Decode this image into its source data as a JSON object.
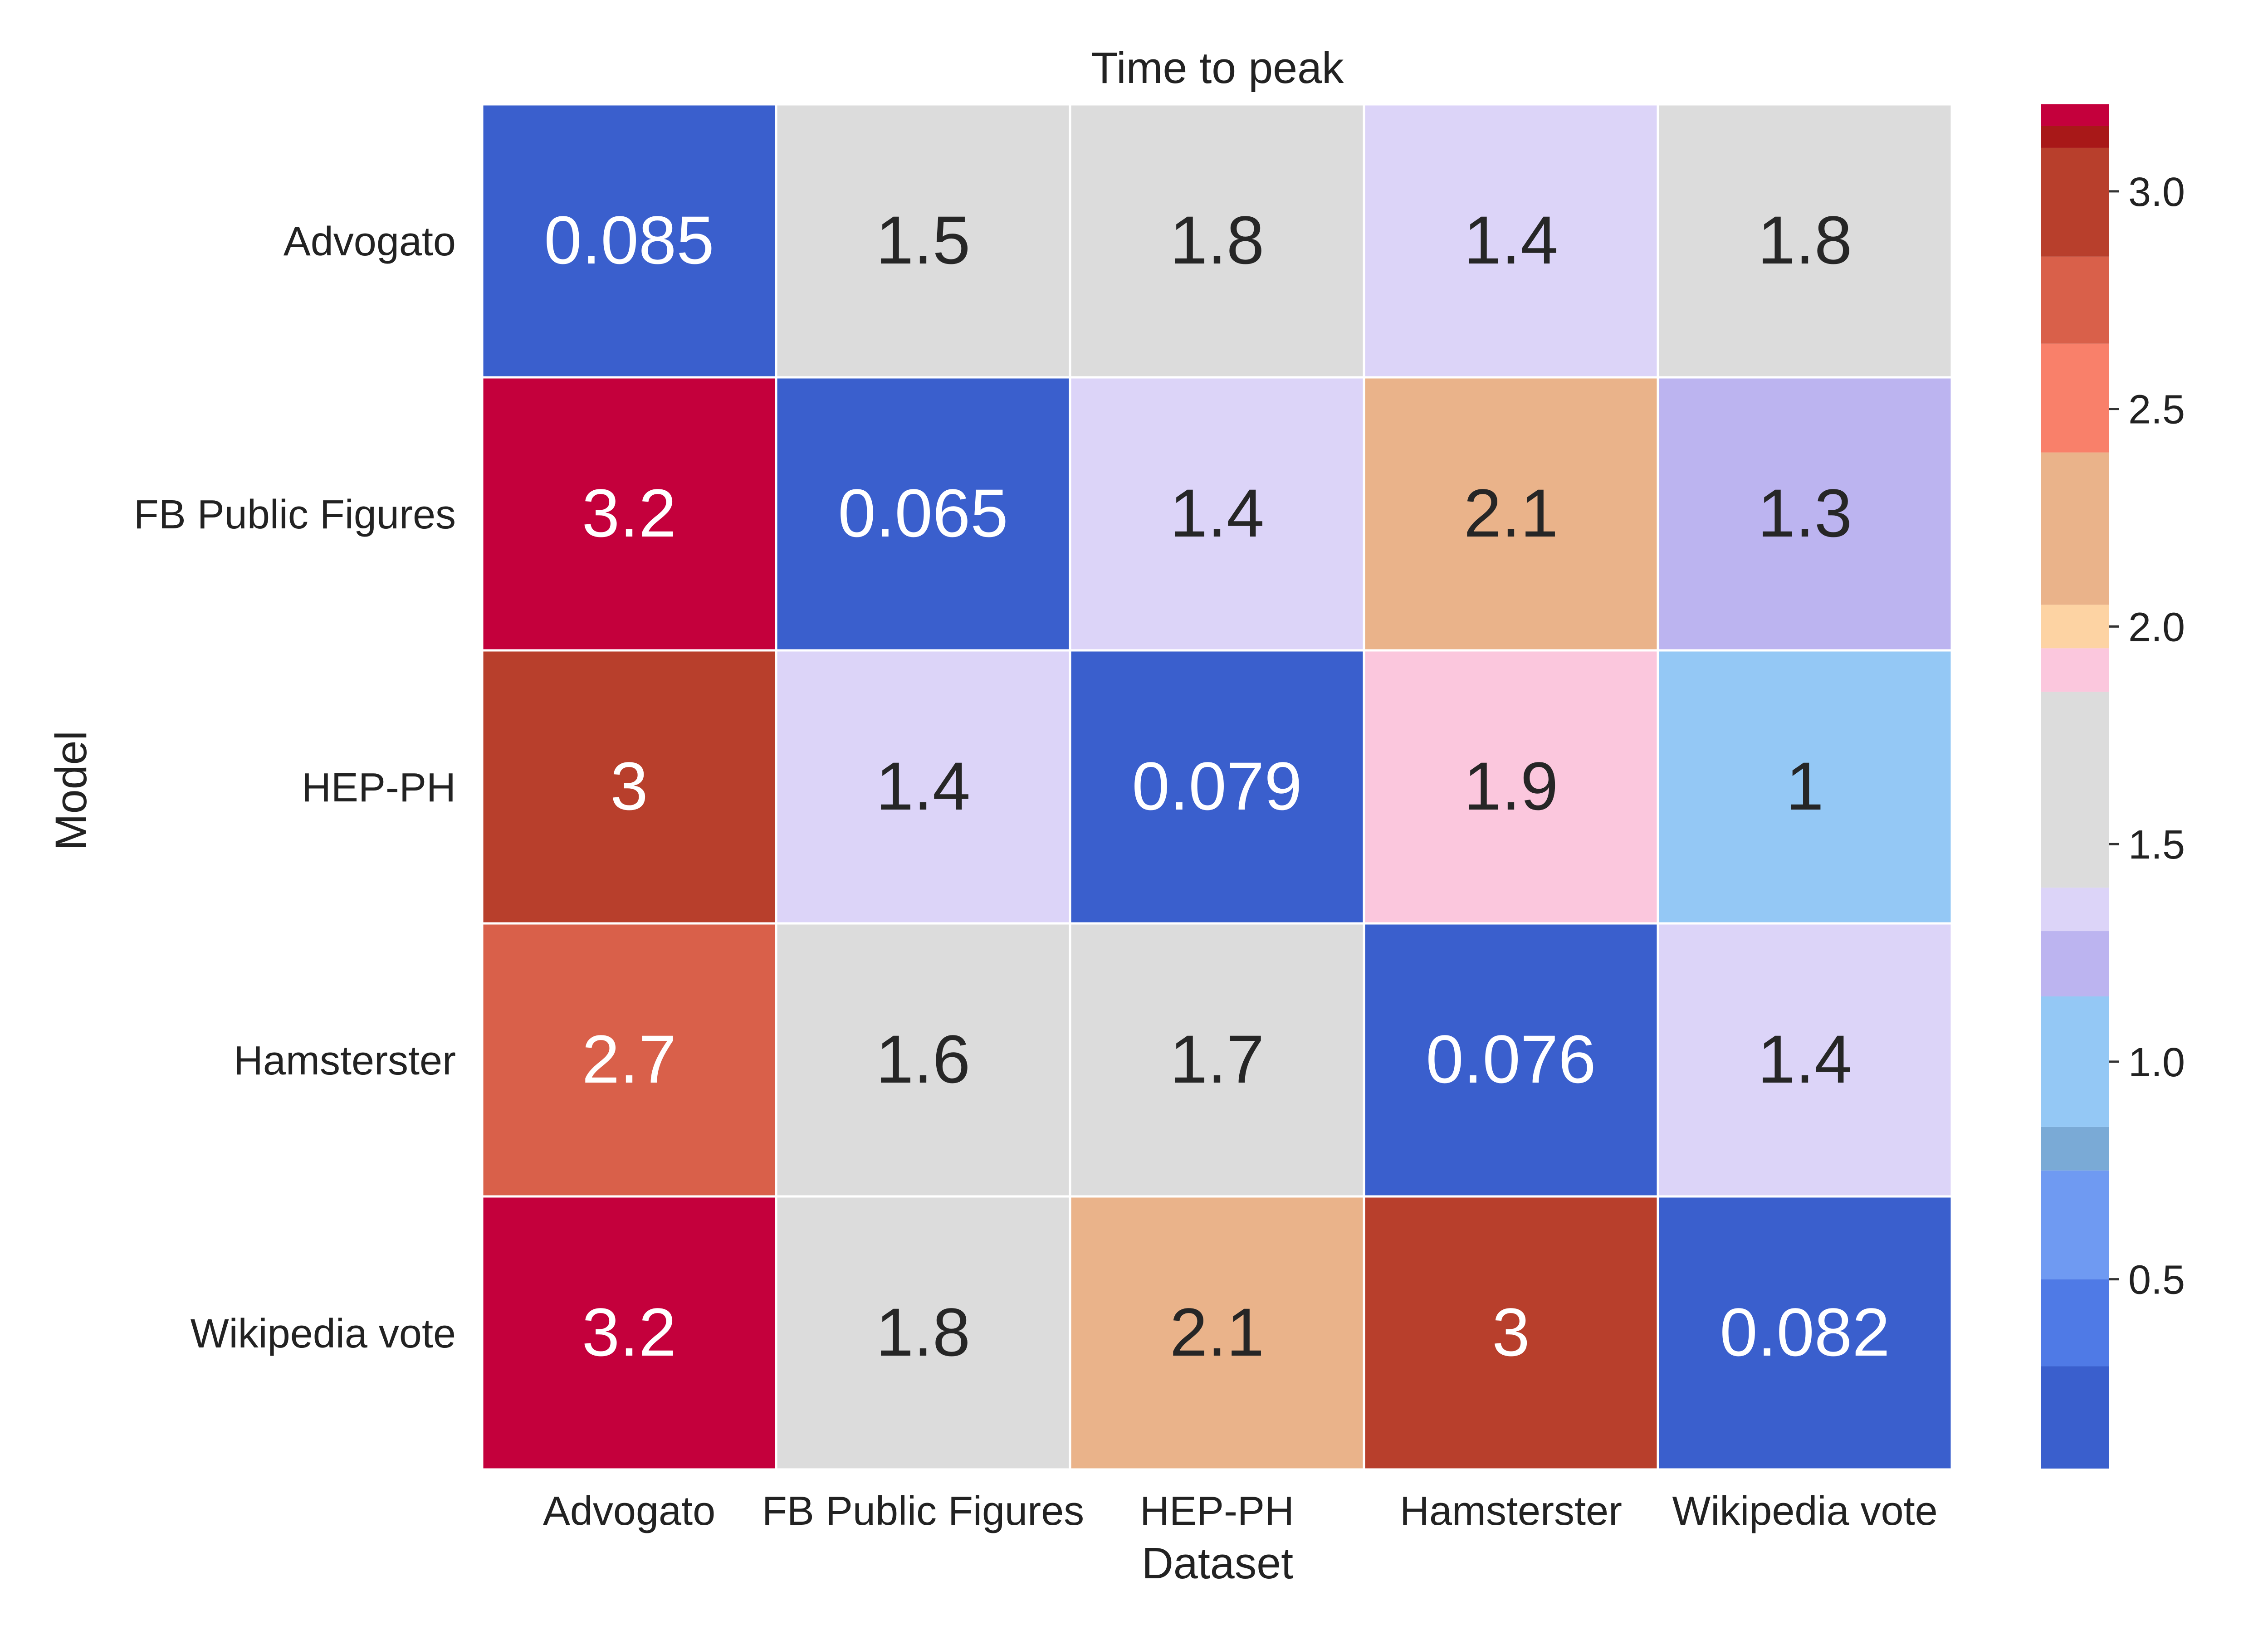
{
  "chart_data": {
    "type": "heatmap",
    "title": "Time to peak",
    "xlabel": "Dataset",
    "ylabel": "Model",
    "x_categories": [
      "Advogato",
      "FB Public Figures",
      "HEP-PH",
      "Hamsterster",
      "Wikipedia vote"
    ],
    "y_categories": [
      "Advogato",
      "FB Public Figures",
      "HEP-PH",
      "Hamsterster",
      "Wikipedia vote"
    ],
    "values": [
      [
        0.085,
        1.5,
        1.8,
        1.4,
        1.8
      ],
      [
        3.2,
        0.065,
        1.4,
        2.1,
        1.3
      ],
      [
        3,
        1.4,
        0.079,
        1.9,
        1
      ],
      [
        2.7,
        1.6,
        1.7,
        0.076,
        1.4
      ],
      [
        3.2,
        1.8,
        2.1,
        3,
        0.082
      ]
    ],
    "cell_labels": [
      [
        "0.085",
        "1.5",
        "1.8",
        "1.4",
        "1.8"
      ],
      [
        "3.2",
        "0.065",
        "1.4",
        "2.1",
        "1.3"
      ],
      [
        "3",
        "1.4",
        "0.079",
        "1.9",
        "1"
      ],
      [
        "2.7",
        "1.6",
        "1.7",
        "0.076",
        "1.4"
      ],
      [
        "3.2",
        "1.8",
        "2.1",
        "3",
        "0.082"
      ]
    ],
    "colorbar": {
      "range": [
        0.065,
        3.2
      ],
      "ticks": [
        0.5,
        1.0,
        1.5,
        2.0,
        2.5,
        3.0
      ],
      "tick_labels": [
        "0.5",
        "1.0",
        "1.5",
        "2.0",
        "2.5",
        "3.0"
      ],
      "bands": [
        {
          "from": 0.065,
          "to": 0.3,
          "color": "#3a5fcd"
        },
        {
          "from": 0.3,
          "to": 0.5,
          "color": "#4f7ae6"
        },
        {
          "from": 0.5,
          "to": 0.75,
          "color": "#6f9af2"
        },
        {
          "from": 0.75,
          "to": 0.85,
          "color": "#7aaad6"
        },
        {
          "from": 0.85,
          "to": 1.15,
          "color": "#94c8f5"
        },
        {
          "from": 1.15,
          "to": 1.3,
          "color": "#bcb4f0"
        },
        {
          "from": 1.3,
          "to": 1.4,
          "color": "#dcd4f8"
        },
        {
          "from": 1.4,
          "to": 1.85,
          "color": "#dcdcdc"
        },
        {
          "from": 1.85,
          "to": 1.95,
          "color": "#fbc7dd"
        },
        {
          "from": 1.95,
          "to": 2.05,
          "color": "#fdd3a3"
        },
        {
          "from": 2.05,
          "to": 2.4,
          "color": "#eab38a"
        },
        {
          "from": 2.4,
          "to": 2.65,
          "color": "#f9806a"
        },
        {
          "from": 2.65,
          "to": 2.85,
          "color": "#d9604a"
        },
        {
          "from": 2.85,
          "to": 3.1,
          "color": "#b83f2c"
        },
        {
          "from": 3.1,
          "to": 3.15,
          "color": "#a81818"
        },
        {
          "from": 3.15,
          "to": 3.2,
          "color": "#c4003c"
        }
      ]
    },
    "grid": false,
    "legend": "colorbar-right"
  }
}
